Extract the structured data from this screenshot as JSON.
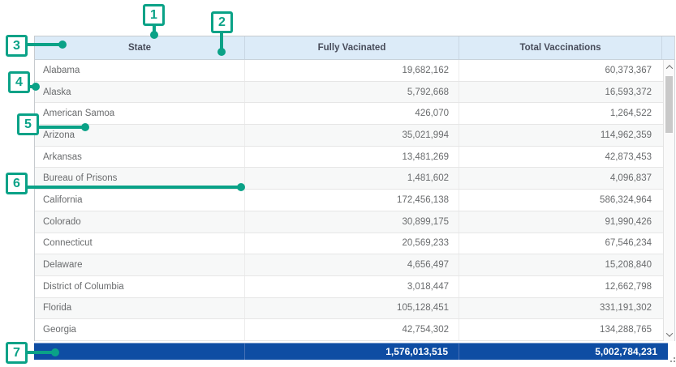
{
  "widget": {
    "columns": [
      "State",
      "Fully Vacinated",
      "Total Vaccinations"
    ],
    "rows": [
      {
        "state": "Alabama",
        "fully_vaccinated": "19,682,162",
        "total_vaccinations": "60,373,367"
      },
      {
        "state": "Alaska",
        "fully_vaccinated": "5,792,668",
        "total_vaccinations": "16,593,372"
      },
      {
        "state": "American Samoa",
        "fully_vaccinated": "426,070",
        "total_vaccinations": "1,264,522"
      },
      {
        "state": "Arizona",
        "fully_vaccinated": "35,021,994",
        "total_vaccinations": "114,962,359"
      },
      {
        "state": "Arkansas",
        "fully_vaccinated": "13,481,269",
        "total_vaccinations": "42,873,453"
      },
      {
        "state": "Bureau of Prisons",
        "fully_vaccinated": "1,481,602",
        "total_vaccinations": "4,096,837"
      },
      {
        "state": "California",
        "fully_vaccinated": "172,456,138",
        "total_vaccinations": "586,324,964"
      },
      {
        "state": "Colorado",
        "fully_vaccinated": "30,899,175",
        "total_vaccinations": "91,990,426"
      },
      {
        "state": "Connecticut",
        "fully_vaccinated": "20,569,233",
        "total_vaccinations": "67,546,234"
      },
      {
        "state": "Delaware",
        "fully_vaccinated": "4,656,497",
        "total_vaccinations": "15,208,840"
      },
      {
        "state": "District of Columbia",
        "fully_vaccinated": "3,018,447",
        "total_vaccinations": "12,662,798"
      },
      {
        "state": "Florida",
        "fully_vaccinated": "105,128,451",
        "total_vaccinations": "331,191,302"
      },
      {
        "state": "Georgia",
        "fully_vaccinated": "42,754,302",
        "total_vaccinations": "134,288,765"
      }
    ],
    "total_row": {
      "state": "",
      "fully_vaccinated": "1,576,013,515",
      "total_vaccinations": "5,002,784,231"
    }
  },
  "callouts": [
    {
      "label": "1"
    },
    {
      "label": "2"
    },
    {
      "label": "3"
    },
    {
      "label": "4"
    },
    {
      "label": "5"
    },
    {
      "label": "6"
    },
    {
      "label": "7"
    }
  ],
  "scrollbar": {
    "up_icon": "chevron-up",
    "down_icon": "chevron-down"
  },
  "colors": {
    "callout_accent": "#0aa287",
    "header_bg": "#dcebf8",
    "header_text": "#484c5a",
    "body_text": "#696b6d",
    "row_stripe": "#f7f8f8",
    "total_row_bg": "#0e4da3",
    "total_row_text": "#ffffff"
  }
}
